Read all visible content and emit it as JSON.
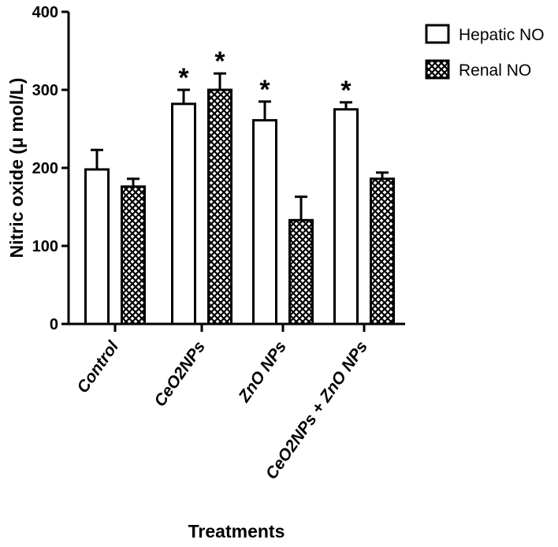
{
  "chart_data": {
    "type": "bar",
    "title": "",
    "xlabel": "Treatments",
    "ylabel": "Nitric oxide (μ mol/L)",
    "ylim": [
      0,
      400
    ],
    "yticks": [
      "0",
      "100",
      "200",
      "300",
      "400"
    ],
    "categories": [
      "Control",
      "CeO2NPs",
      "ZnO NPs",
      "CeO2NPs + ZnO NPs"
    ],
    "series": [
      {
        "name": "Hepatic NO",
        "values": [
          198,
          282,
          261,
          275
        ],
        "errors": [
          25,
          18,
          24,
          9
        ],
        "significance": [
          "",
          "*",
          "*",
          "*"
        ],
        "pattern": "open"
      },
      {
        "name": "Renal NO",
        "values": [
          176,
          300,
          133,
          186
        ],
        "errors": [
          10,
          21,
          30,
          8
        ],
        "significance": [
          "",
          "*",
          "",
          ""
        ],
        "pattern": "crosshatch"
      }
    ],
    "legend_position": "top-right",
    "grid": false
  }
}
